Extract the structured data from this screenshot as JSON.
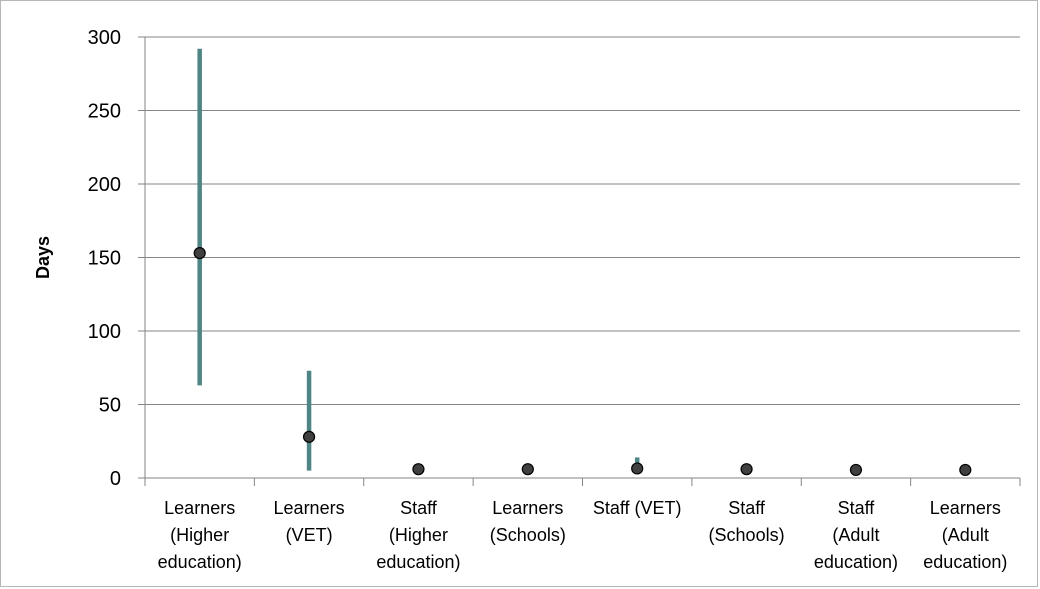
{
  "chart_data": {
    "type": "scatter",
    "ylabel": "Days",
    "ylim": [
      0,
      300
    ],
    "yticks": [
      0,
      50,
      100,
      150,
      200,
      250,
      300
    ],
    "grid": true,
    "categories": [
      [
        "Learners",
        "(Higher",
        "education)"
      ],
      [
        "Learners",
        "(VET)"
      ],
      [
        "Staff",
        "(Higher",
        "education)"
      ],
      [
        "Learners",
        "(Schools)"
      ],
      [
        "Staff (VET)"
      ],
      [
        "Staff",
        "(Schools)"
      ],
      [
        "Staff",
        "(Adult",
        "education)"
      ],
      [
        "Learners",
        "(Adult",
        "education)"
      ]
    ],
    "values": [
      153,
      28,
      6,
      6,
      6.5,
      6,
      5.5,
      5.5
    ],
    "ranges": [
      [
        63,
        292
      ],
      [
        5,
        73
      ],
      null,
      null,
      [
        5,
        14
      ],
      null,
      null,
      null
    ],
    "colors": {
      "range": "#4f8585",
      "point": "#404040",
      "grid": "#868686"
    }
  }
}
